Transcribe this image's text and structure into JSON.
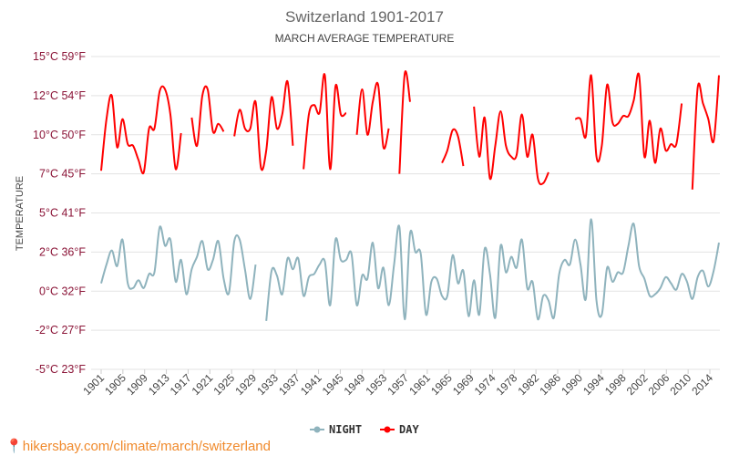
{
  "chart_data": {
    "type": "line",
    "title": "Switzerland 1901-2017",
    "subtitle": "MARCH AVERAGE TEMPERATURE",
    "ylabel": "TEMPERATURE",
    "xlabel": "",
    "x_start": 1901,
    "x_end": 2017,
    "x_tick_labels": [
      "1901",
      "1905",
      "1909",
      "1913",
      "1917",
      "1921",
      "1925",
      "1929",
      "1933",
      "1937",
      "1941",
      "1945",
      "1949",
      "1953",
      "1957",
      "1961",
      "1965",
      "1969",
      "1974",
      "1978",
      "1982",
      "1986",
      "1990",
      "1994",
      "1998",
      "2002",
      "2006",
      "2010",
      "2014"
    ],
    "ylim": [
      -5,
      15
    ],
    "y_ticks": [
      15,
      12.5,
      10,
      7.5,
      5,
      2.5,
      0,
      -2.5,
      -5
    ],
    "y_tick_labels": [
      "15°C 59°F",
      "12°C 54°F",
      "10°C 50°F",
      "7°C 45°F",
      "5°C 41°F",
      "2°C 36°F",
      "0°C 32°F",
      "-2°C 27°F",
      "-5°C 23°F"
    ],
    "grid": true,
    "legend_position": "bottom",
    "series": [
      {
        "name": "NIGHT",
        "color": "#8fb3bd",
        "values": [
          0.5,
          1.7,
          2.6,
          1.6,
          3.3,
          0.5,
          0.2,
          0.7,
          0.2,
          1.1,
          1.2,
          4.1,
          2.9,
          3.3,
          0.6,
          2.0,
          -0.2,
          1.4,
          2.2,
          3.2,
          1.4,
          2.0,
          3.2,
          0.8,
          -0.1,
          3.2,
          3.3,
          1.4,
          -0.5,
          1.7,
          null,
          -1.9,
          1.3,
          1.0,
          -0.2,
          2.1,
          1.4,
          2.1,
          -0.3,
          0.9,
          1.1,
          1.7,
          1.9,
          -0.9,
          3.3,
          2.0,
          2.0,
          2.4,
          -0.9,
          1.0,
          0.8,
          3.1,
          0.2,
          1.5,
          -0.9,
          1.7,
          4.1,
          -1.8,
          3.7,
          2.5,
          2.4,
          -1.5,
          0.6,
          0.8,
          -0.3,
          -0.3,
          2.3,
          0.5,
          1.3,
          -1.6,
          0.7,
          -1.5,
          2.7,
          1.1,
          -1.7,
          2.9,
          1.2,
          2.2,
          1.5,
          3.3,
          0.2,
          0.6,
          -1.8,
          -0.3,
          -0.6,
          -1.7,
          1.1,
          2.0,
          1.7,
          3.3,
          1.7,
          -0.5,
          4.6,
          -0.6,
          -1.5,
          1.5,
          0.6,
          1.2,
          1.2,
          2.9,
          4.3,
          1.6,
          0.8,
          -0.3,
          -0.2,
          0.2,
          0.9,
          0.5,
          0.1,
          1.1,
          0.6,
          -0.5,
          0.9,
          1.3,
          0.3,
          1.3,
          3.1
        ]
      },
      {
        "name": "DAY",
        "color": "#ff0000",
        "values": [
          7.7,
          11.0,
          12.5,
          9.2,
          11.0,
          9.4,
          9.3,
          8.4,
          7.6,
          10.4,
          10.4,
          12.8,
          12.9,
          11.3,
          7.8,
          10.1,
          null,
          11.1,
          9.3,
          12.5,
          12.9,
          10.2,
          10.7,
          10.2,
          null,
          9.9,
          11.6,
          10.4,
          10.4,
          12.1,
          7.9,
          9.0,
          12.4,
          10.4,
          11.3,
          13.4,
          9.3,
          null,
          7.8,
          11.3,
          11.9,
          11.4,
          13.8,
          7.8,
          13.1,
          11.3,
          11.4,
          null,
          10.0,
          12.9,
          10.0,
          12.1,
          13.2,
          9.2,
          10.4,
          null,
          7.5,
          13.9,
          12.1,
          null,
          null,
          null,
          null,
          null,
          8.2,
          9.0,
          10.3,
          9.9,
          8.0,
          null,
          11.8,
          8.6,
          11.1,
          7.2,
          9.3,
          11.5,
          9.3,
          8.6,
          8.7,
          11.3,
          8.6,
          10.0,
          7.2,
          6.9,
          7.6,
          null,
          null,
          null,
          null,
          11.0,
          11.0,
          9.9,
          13.8,
          8.6,
          9.3,
          13.2,
          10.8,
          10.7,
          11.2,
          11.2,
          12.2,
          13.8,
          8.6,
          10.9,
          8.2,
          10.4,
          9.0,
          9.4,
          9.4,
          12.0,
          null,
          6.5,
          13.0,
          12.0,
          11.0,
          9.6,
          13.8
        ]
      }
    ]
  },
  "watermark": "hikersbay.com/climate/march/switzerland"
}
